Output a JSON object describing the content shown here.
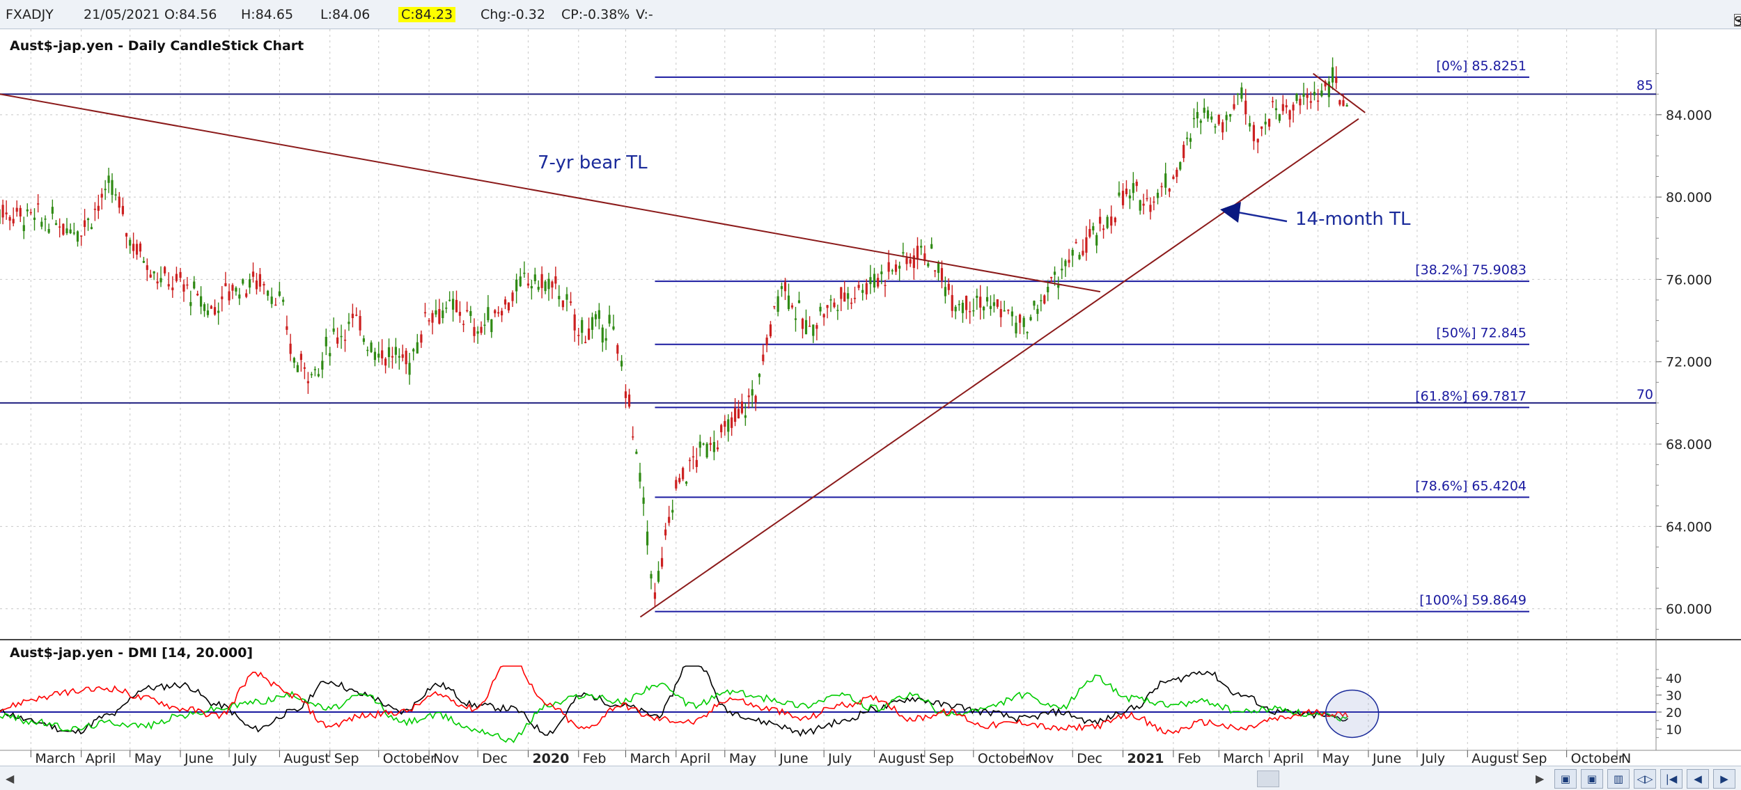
{
  "header": {
    "symbol": "FXADJY",
    "date": "21/05/2021",
    "open": "O:84.56",
    "high": "H:84.65",
    "low": "L:84.06",
    "close": "C:84.23",
    "change": "Chg:-0.32",
    "change_pct": "CP:-0.38%",
    "volume": "V:-",
    "show_last_label": "Show Last",
    "show_last_checked": true,
    "close_highlight_color": "#ffff00"
  },
  "chart_data": [
    {
      "type": "candlestick",
      "title": "Aust$-jap.yen - Daily CandleStick Chart",
      "ylim": [
        58.5,
        86.8
      ],
      "y_ticks": [
        "84.000",
        "80.000",
        "76.000",
        "72.000",
        "68.000",
        "64.000",
        "60.000"
      ],
      "x_month_labels": [
        "March",
        "April",
        "May",
        "June",
        "July",
        "August",
        "Sep",
        "October",
        "Nov",
        "Dec",
        "2020",
        "Feb",
        "March",
        "April",
        "May",
        "June",
        "July",
        "August",
        "Sep",
        "October",
        "Nov",
        "Dec",
        "2021",
        "Feb",
        "March",
        "April",
        "May",
        "June",
        "July",
        "August",
        "Sep",
        "October",
        "N"
      ],
      "bold_labels": [
        "2020",
        "2021"
      ],
      "horizontal_levels": [
        {
          "value": 85,
          "label": "85"
        },
        {
          "value": 70,
          "label": "70"
        }
      ],
      "fibonacci_levels": [
        {
          "label": "[0%] 85.8251",
          "value": 85.8251
        },
        {
          "label": "[38.2%] 75.9083",
          "value": 75.9083
        },
        {
          "label": "[50%] 72.845",
          "value": 72.845
        },
        {
          "label": "[61.8%] 69.7817",
          "value": 69.7817
        },
        {
          "label": "[78.6%] 65.4204",
          "value": 65.4204
        },
        {
          "label": "[100%] 59.8649",
          "value": 59.8649
        }
      ],
      "annotations": [
        {
          "text": "7-yr bear TL",
          "type": "trendline"
        },
        {
          "text": "14-month TL",
          "type": "trendline",
          "arrow": true
        }
      ],
      "price_path": [
        {
          "t": "2019-02",
          "v": 79.5
        },
        {
          "t": "2019-03",
          "v": 79.0
        },
        {
          "t": "2019-04",
          "v": 78.5
        },
        {
          "t": "2019-04-20",
          "v": 80.5
        },
        {
          "t": "2019-05",
          "v": 78.0
        },
        {
          "t": "2019-05-20",
          "v": 76.0
        },
        {
          "t": "2019-06",
          "v": 75.8
        },
        {
          "t": "2019-06-20",
          "v": 74.5
        },
        {
          "t": "2019-07",
          "v": 75.5
        },
        {
          "t": "2019-07-20",
          "v": 76.0
        },
        {
          "t": "2019-08",
          "v": 75.0
        },
        {
          "t": "2019-08-10",
          "v": 72.0
        },
        {
          "t": "2019-08-25",
          "v": 71.5
        },
        {
          "t": "2019-09",
          "v": 73.0
        },
        {
          "t": "2019-09-15",
          "v": 74.0
        },
        {
          "t": "2019-10",
          "v": 72.5
        },
        {
          "t": "2019-10-20",
          "v": 72.0
        },
        {
          "t": "2019-11",
          "v": 74.5
        },
        {
          "t": "2019-11-20",
          "v": 74.5
        },
        {
          "t": "2019-12",
          "v": 73.5
        },
        {
          "t": "2019-12-20",
          "v": 75.0
        },
        {
          "t": "2020-01",
          "v": 76.0
        },
        {
          "t": "2020-01-20",
          "v": 75.5
        },
        {
          "t": "2020-02",
          "v": 73.5
        },
        {
          "t": "2020-02-20",
          "v": 73.8
        },
        {
          "t": "2020-03",
          "v": 71.0
        },
        {
          "t": "2020-03-12",
          "v": 65.0
        },
        {
          "t": "2020-03-19",
          "v": 60.5
        },
        {
          "t": "2020-04",
          "v": 66.0
        },
        {
          "t": "2020-04-20",
          "v": 68.0
        },
        {
          "t": "2020-05",
          "v": 68.5
        },
        {
          "t": "2020-05-20",
          "v": 70.5
        },
        {
          "t": "2020-06-05",
          "v": 76.0
        },
        {
          "t": "2020-06-20",
          "v": 73.5
        },
        {
          "t": "2020-07",
          "v": 74.5
        },
        {
          "t": "2020-07-20",
          "v": 75.5
        },
        {
          "t": "2020-08",
          "v": 76.0
        },
        {
          "t": "2020-09",
          "v": 77.5
        },
        {
          "t": "2020-09-20",
          "v": 75.0
        },
        {
          "t": "2020-10",
          "v": 75.0
        },
        {
          "t": "2020-10-20",
          "v": 74.5
        },
        {
          "t": "2020-11",
          "v": 73.5
        },
        {
          "t": "2020-11-20",
          "v": 76.0
        },
        {
          "t": "2020-12",
          "v": 77.0
        },
        {
          "t": "2020-12-20",
          "v": 78.5
        },
        {
          "t": "2021-01",
          "v": 80.0
        },
        {
          "t": "2021-01-20",
          "v": 80.0
        },
        {
          "t": "2021-02",
          "v": 81.0
        },
        {
          "t": "2021-02-20",
          "v": 84.5
        },
        {
          "t": "2021-03",
          "v": 83.5
        },
        {
          "t": "2021-03-15",
          "v": 85.0
        },
        {
          "t": "2021-03-25",
          "v": 83.0
        },
        {
          "t": "2021-04",
          "v": 84.0
        },
        {
          "t": "2021-04-20",
          "v": 84.5
        },
        {
          "t": "2021-05",
          "v": 85.0
        },
        {
          "t": "2021-05-10",
          "v": 85.5
        },
        {
          "t": "2021-05-21",
          "v": 84.23
        }
      ]
    },
    {
      "type": "line",
      "title": "Aust$-jap.yen - DMI [14, 20.000]",
      "ylim": [
        2,
        47
      ],
      "y_ticks": [
        "40",
        "30",
        "20",
        "10"
      ],
      "reference_level": 20,
      "series": [
        {
          "color": "#000000",
          "values": [
            20,
            14,
            8,
            18,
            34,
            36,
            24,
            10,
            20,
            38,
            30,
            20,
            36,
            24,
            22,
            8,
            30,
            24,
            18,
            52,
            20,
            14,
            8,
            14,
            22,
            28,
            24,
            20,
            16,
            20,
            14,
            22,
            38,
            44,
            30,
            20,
            18,
            16
          ]
        },
        {
          "color": "#00cc00",
          "values": [
            18,
            14,
            10,
            14,
            12,
            18,
            22,
            26,
            30,
            22,
            30,
            14,
            18,
            10,
            4,
            24,
            30,
            26,
            36,
            24,
            32,
            28,
            24,
            30,
            22,
            30,
            18,
            22,
            30,
            22,
            40,
            28,
            24,
            26,
            20,
            22,
            18,
            16
          ]
        },
        {
          "color": "#ff0000",
          "values": [
            22,
            28,
            32,
            34,
            28,
            22,
            18,
            42,
            30,
            12,
            18,
            20,
            30,
            22,
            52,
            24,
            10,
            24,
            16,
            14,
            28,
            22,
            16,
            24,
            28,
            16,
            20,
            12,
            14,
            10,
            12,
            18,
            8,
            14,
            10,
            16,
            20,
            18
          ]
        }
      ],
      "colors": {
        "black": "#000000",
        "green": "#00cc00",
        "red": "#ff0000",
        "level": "#1a1aa0"
      }
    }
  ],
  "colors": {
    "trendline": "#8b1a1a",
    "fib_lines": "#1a1aa0",
    "hline": "#202080",
    "candles": "#2f7d12",
    "annotation_text": "#1a2a9a",
    "highlight_circle": "#1a2a9a"
  },
  "scroll": {
    "thumb_position": 0.72
  },
  "nav_buttons": [
    {
      "name": "zoom-out-icon",
      "glyph": "▣"
    },
    {
      "name": "zoom-in-icon",
      "glyph": "▣"
    },
    {
      "name": "fit-icon",
      "glyph": "▥"
    },
    {
      "name": "scroll-both-icon",
      "glyph": "◁▷"
    },
    {
      "name": "go-start-icon",
      "glyph": "|◀"
    },
    {
      "name": "step-back-icon",
      "glyph": "◀"
    },
    {
      "name": "step-forward-icon",
      "glyph": "▶"
    }
  ]
}
